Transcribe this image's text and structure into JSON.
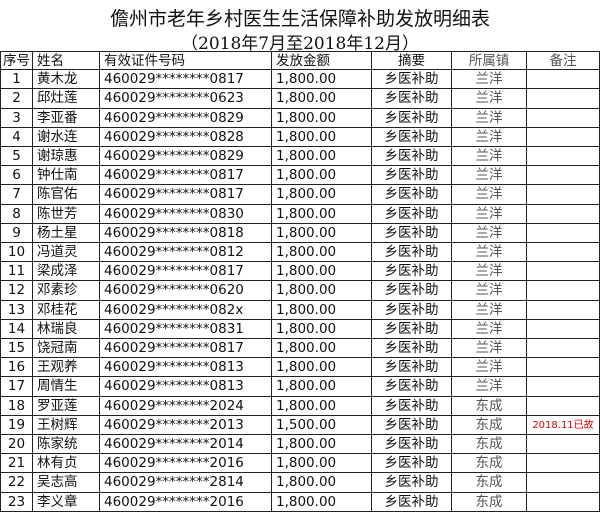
{
  "header": {
    "title": "儋州市老年乡村医生生活保障补助发放明细表",
    "subtitle": "（2018年7月至2018年12月）"
  },
  "table": {
    "columns": [
      "序号",
      "姓名",
      "有效证件号码",
      "发放金额",
      "摘要",
      "所属镇",
      "备注"
    ],
    "rows": [
      {
        "no": 1,
        "name": "黄木龙",
        "id": "460029********0817",
        "amount": "1,800.00",
        "summary": "乡医补助",
        "town": "兰洋"
      },
      {
        "no": 2,
        "name": "邱灶莲",
        "id": "460029********0623",
        "amount": "1,800.00",
        "summary": "乡医补助",
        "town": "兰洋"
      },
      {
        "no": 3,
        "name": "李亚番",
        "id": "460029********0829",
        "amount": "1,800.00",
        "summary": "乡医补助",
        "town": "兰洋"
      },
      {
        "no": 4,
        "name": "谢水连",
        "id": "460029********0828",
        "amount": "1,800.00",
        "summary": "乡医补助",
        "town": "兰洋"
      },
      {
        "no": 5,
        "name": "谢琼惠",
        "id": "460029********0829",
        "amount": "1,800.00",
        "summary": "乡医补助",
        "town": "兰洋"
      },
      {
        "no": 6,
        "name": "钟仕南",
        "id": "460029********0817",
        "amount": "1,800.00",
        "summary": "乡医补助",
        "town": "兰洋"
      },
      {
        "no": 7,
        "name": "陈官佑",
        "id": "460029********0817",
        "amount": "1,800.00",
        "summary": "乡医补助",
        "town": "兰洋"
      },
      {
        "no": 8,
        "name": "陈世芳",
        "id": "460029********0830",
        "amount": "1,800.00",
        "summary": "乡医补助",
        "town": "兰洋"
      },
      {
        "no": 9,
        "name": "杨土星",
        "id": "460029********0818",
        "amount": "1,800.00",
        "summary": "乡医补助",
        "town": "兰洋"
      },
      {
        "no": 10,
        "name": "冯道灵",
        "id": "460029********0812",
        "amount": "1,800.00",
        "summary": "乡医补助",
        "town": "兰洋"
      },
      {
        "no": 11,
        "name": "梁成泽",
        "id": "460029********0817",
        "amount": "1,800.00",
        "summary": "乡医补助",
        "town": "兰洋"
      },
      {
        "no": 12,
        "name": "邓素珍",
        "id": "460029********0620",
        "amount": "1,800.00",
        "summary": "乡医补助",
        "town": "兰洋"
      },
      {
        "no": 13,
        "name": "邓桂花",
        "id": "460029********082x",
        "amount": "1,800.00",
        "summary": "乡医补助",
        "town": "兰洋"
      },
      {
        "no": 14,
        "name": "林瑞良",
        "id": "460029********0831",
        "amount": "1,800.00",
        "summary": "乡医补助",
        "town": "兰洋"
      },
      {
        "no": 15,
        "name": "饶冠南",
        "id": "460029********0817",
        "amount": "1,800.00",
        "summary": "乡医补助",
        "town": "兰洋"
      },
      {
        "no": 16,
        "name": "王观养",
        "id": "460029********0813",
        "amount": "1,800.00",
        "summary": "乡医补助",
        "town": "兰洋"
      },
      {
        "no": 17,
        "name": "周情生",
        "id": "460029********0813",
        "amount": "1,800.00",
        "summary": "乡医补助",
        "town": "兰洋"
      },
      {
        "no": 18,
        "name": "罗亚莲",
        "id": "460029********2024",
        "amount": "1,800.00",
        "summary": "乡医补助",
        "town": "东成"
      },
      {
        "no": 19,
        "name": "王树辉",
        "id": "460029********2013",
        "amount": "1,500.00",
        "summary": "乡医补助",
        "town": "东成",
        "note": "2018.11已故"
      },
      {
        "no": 20,
        "name": "陈家统",
        "id": "460029********2014",
        "amount": "1,800.00",
        "summary": "乡医补助",
        "town": "东成"
      },
      {
        "no": 21,
        "name": "林有贞",
        "id": "460029********2016",
        "amount": "1,800.00",
        "summary": "乡医补助",
        "town": "东成"
      },
      {
        "no": 22,
        "name": "吴志高",
        "id": "460029********2814",
        "amount": "1,800.00",
        "summary": "乡医补助",
        "town": "东成"
      },
      {
        "no": 23,
        "name": "李义章",
        "id": "460029********2016",
        "amount": "1,800.00",
        "summary": "乡医补助",
        "town": "东成"
      }
    ]
  }
}
